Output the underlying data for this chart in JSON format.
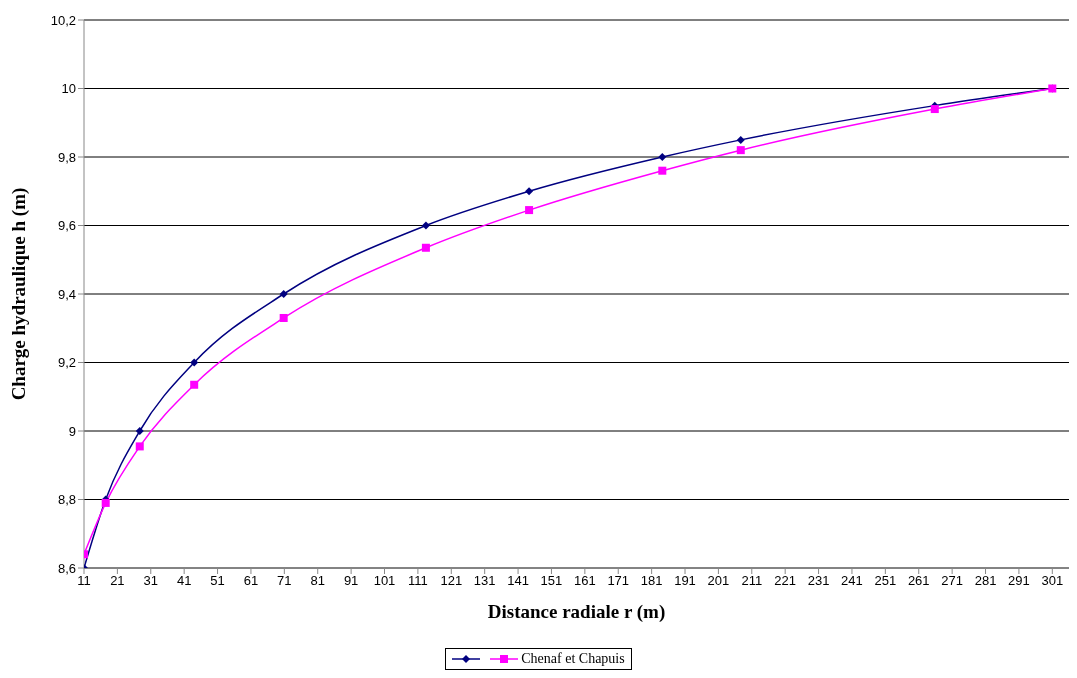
{
  "chart_data": {
    "type": "line",
    "xlabel": "Distance radiale r (m)",
    "ylabel": "Charge hydraulique h (m)",
    "xlim": [
      11,
      306
    ],
    "xticks": [
      11,
      21,
      31,
      41,
      51,
      61,
      71,
      81,
      91,
      101,
      111,
      121,
      131,
      141,
      151,
      161,
      171,
      181,
      191,
      201,
      211,
      221,
      231,
      241,
      251,
      261,
      271,
      281,
      291,
      301
    ],
    "ylim": [
      8.6,
      10.2
    ],
    "yticks": [
      {
        "value": 8.6,
        "label": "8,6"
      },
      {
        "value": 8.8,
        "label": "8,8"
      },
      {
        "value": 9,
        "label": "9"
      },
      {
        "value": 9.2,
        "label": "9,2"
      },
      {
        "value": 9.4,
        "label": "9,4"
      },
      {
        "value": 9.6,
        "label": "9,6"
      },
      {
        "value": 9.8,
        "label": "9,8"
      },
      {
        "value": 10,
        "label": "10"
      },
      {
        "value": 10.2,
        "label": "10,2"
      }
    ],
    "grid": "y",
    "legend": "bottom",
    "series": [
      {
        "color": "#000080",
        "marker": "diamond",
        "x": [
          11,
          17.5,
          27.7,
          44,
          70.8,
          113.4,
          144.3,
          184.2,
          207.7,
          265.8,
          301
        ],
        "values": [
          8.6,
          8.8,
          9.0,
          9.2,
          9.4,
          9.6,
          9.7,
          9.8,
          9.85,
          9.95,
          10
        ]
      },
      {
        "name": "Chenaf et Chapuis",
        "color": "#ff00ff",
        "marker": "square",
        "x": [
          11,
          17.5,
          27.7,
          44,
          70.8,
          113.4,
          144.3,
          184.2,
          207.7,
          265.8,
          301
        ],
        "values": [
          8.64,
          8.79,
          8.955,
          9.135,
          9.33,
          9.535,
          9.645,
          9.76,
          9.82,
          9.94,
          10
        ]
      }
    ]
  }
}
